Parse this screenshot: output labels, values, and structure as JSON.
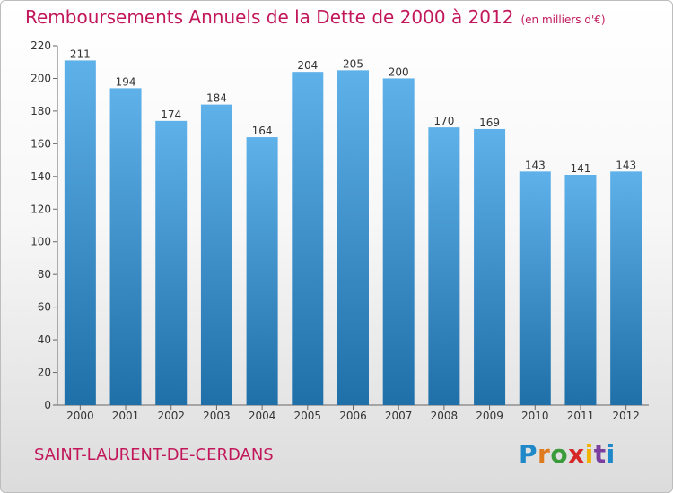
{
  "title": "Remboursements Annuels de la Dette de 2000 à 2012",
  "unit": "(en milliers d'€)",
  "commune": "SAINT-LAURENT-DE-CERDANS",
  "logo": {
    "letters": [
      "P",
      "r",
      "o",
      "x",
      "i",
      "t",
      "i"
    ],
    "colors": [
      "#1e88c8",
      "#e07a1f",
      "#3a9b3a",
      "#d62828",
      "#f0b400",
      "#7b3fa0",
      "#1e88c8"
    ]
  },
  "colors": {
    "title": "#c2185b",
    "bar_top": "#5fb1ea",
    "bar_bottom": "#1f6fa8"
  },
  "chart_data": {
    "type": "bar",
    "categories": [
      "2000",
      "2001",
      "2002",
      "2003",
      "2004",
      "2005",
      "2006",
      "2007",
      "2008",
      "2009",
      "2010",
      "2011",
      "2012"
    ],
    "values": [
      211,
      194,
      174,
      184,
      164,
      204,
      205,
      200,
      170,
      169,
      143,
      141,
      143
    ],
    "value_labels": [
      "211",
      "194",
      "174",
      "184",
      "164",
      "204",
      "205",
      "200",
      "170",
      "169",
      "143",
      "141",
      "143"
    ],
    "title": "Remboursements Annuels de la Dette de 2000 à 2012",
    "ylim": [
      0,
      220
    ],
    "yticks": [
      0,
      20,
      40,
      60,
      80,
      100,
      120,
      140,
      160,
      180,
      200,
      220
    ],
    "ytick_labels": [
      "0",
      "20",
      "40",
      "60",
      "80",
      "100",
      "120",
      "140",
      "160",
      "180",
      "200",
      "220"
    ],
    "grid": false,
    "legend": "none"
  }
}
